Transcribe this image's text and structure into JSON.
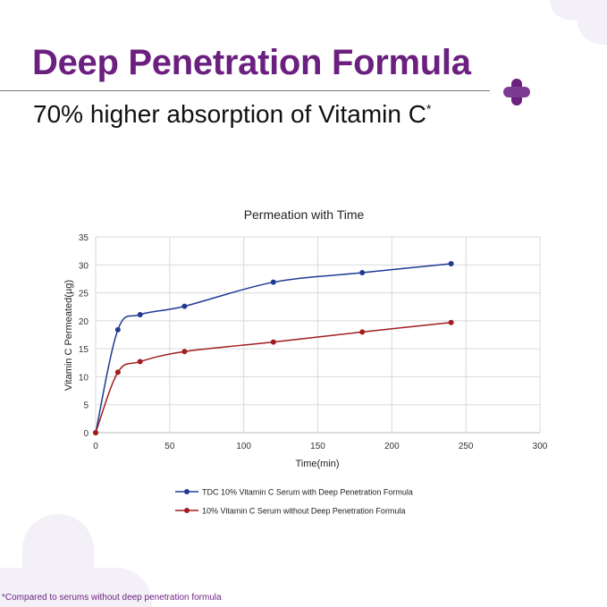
{
  "header": {
    "title": "Deep Penetration Formula",
    "subtitle": "70% higher absorption of Vitamin C",
    "subtitle_mark": "*"
  },
  "footnote": "*Compared to serums without deep penetration formula",
  "brand_color": "#6b1f7f",
  "icon": "purple-cross-logo",
  "chart_data": {
    "type": "line",
    "title": "Permeation with Time",
    "xlabel": "Time(min)",
    "ylabel": "Vitamin C Permeated(µg)",
    "xlim": [
      0,
      300
    ],
    "ylim": [
      0,
      35
    ],
    "xticks": [
      0,
      50,
      100,
      150,
      200,
      250,
      300
    ],
    "yticks": [
      0,
      5,
      10,
      15,
      20,
      25,
      30,
      35
    ],
    "grid": true,
    "legend": "bottom",
    "x": [
      0,
      15,
      30,
      60,
      120,
      180,
      240
    ],
    "series": [
      {
        "name": "TDC 10% Vitamin C Serum with Deep Penetration Formula",
        "color": "#1f3a93",
        "values": [
          0,
          18.4,
          21.1,
          22.6,
          26.9,
          28.6,
          30.2
        ]
      },
      {
        "name": "10% Vitamin C Serum without Deep Penetration Formula",
        "color": "#a11d1d",
        "values": [
          0,
          10.8,
          12.7,
          14.5,
          16.2,
          18.0,
          19.7
        ]
      }
    ]
  }
}
